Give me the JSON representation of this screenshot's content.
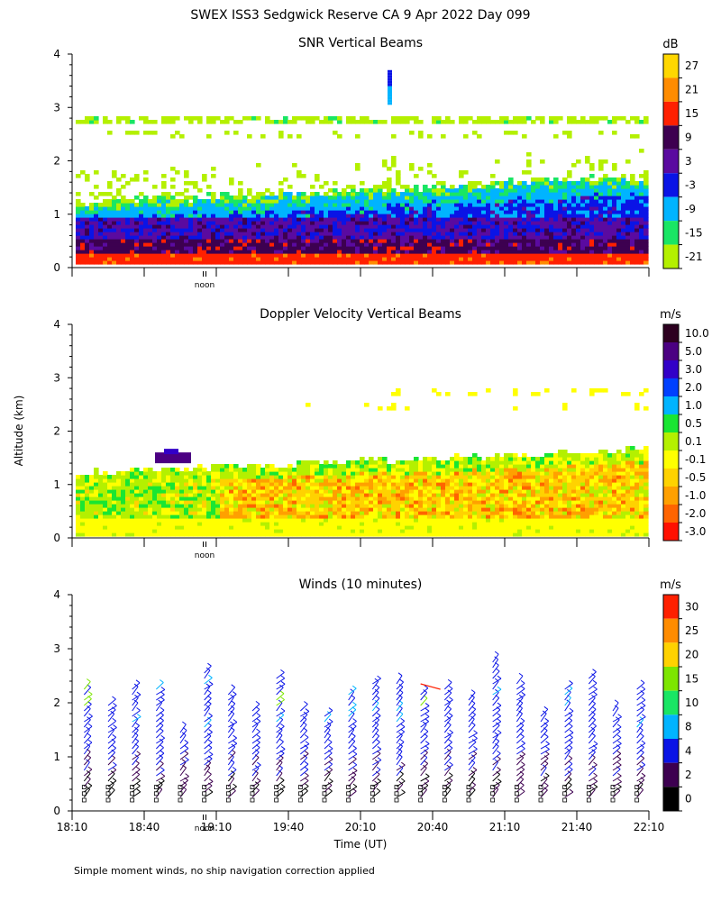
{
  "figure": {
    "title": "SWEX ISS3 Sedgwick Reserve CA   9 Apr 2022 Day 099",
    "y_axis_label": "Altitude (km)",
    "x_axis_label": "Time (UT)",
    "footnote": "Simple moment winds, no ship navigation correction applied",
    "noon_marker": "noon"
  },
  "chart_data": [
    {
      "type": "heatmap",
      "title": "SNR Vertical Beams",
      "ylabel": "Altitude (km)",
      "ylim": [
        0,
        4
      ],
      "yticks": [
        "0",
        "1",
        "2",
        "3",
        "4"
      ],
      "xlim_minutes_utc": [
        1090,
        1330
      ],
      "colorbar": {
        "unit": "dB",
        "labels": [
          "27",
          "21",
          "15",
          "9",
          "3",
          "-3",
          "-9",
          "-15",
          "-21"
        ],
        "colors": [
          "#ffd700",
          "#ff8c00",
          "#ff2000",
          "#3d0050",
          "#5a0aa0",
          "#0a14e6",
          "#00b4ff",
          "#19e664",
          "#b4f000"
        ]
      },
      "description_layers": [
        {
          "alt_km": [
            0.1,
            0.35
          ],
          "level": "15",
          "color": "#ff2000"
        },
        {
          "alt_km": [
            0.35,
            0.75
          ],
          "level": "9",
          "color": "#3d0050"
        },
        {
          "alt_km": [
            0.75,
            1.3
          ],
          "level": "-3",
          "color": "#0a14e6"
        },
        {
          "alt_km": [
            1.3,
            1.8
          ],
          "level": "-9",
          "color": "#00b4ff"
        },
        {
          "alt_km": [
            2.7,
            2.85
          ],
          "level": "-21",
          "color": "#b4f000"
        }
      ]
    },
    {
      "type": "heatmap",
      "title": "Doppler Velocity Vertical Beams",
      "ylabel": "Altitude (km)",
      "ylim": [
        0,
        4
      ],
      "yticks": [
        "0",
        "1",
        "2",
        "3",
        "4"
      ],
      "xlim_minutes_utc": [
        1090,
        1330
      ],
      "colorbar": {
        "unit": "m/s",
        "labels": [
          "10.0",
          "5.0",
          "3.0",
          "2.0",
          "1.0",
          "0.5",
          "0.1",
          "-0.1",
          "-0.5",
          "-1.0",
          "-2.0",
          "-3.0"
        ],
        "colors": [
          "#2d0020",
          "#4b0082",
          "#3200c8",
          "#0040ff",
          "#00b4ff",
          "#19e632",
          "#b4f000",
          "#ffff00",
          "#ffd200",
          "#ffa000",
          "#ff6400",
          "#ff1000"
        ]
      }
    },
    {
      "type": "scatter",
      "title": "Winds (10 minutes)",
      "ylabel": "Altitude (km)",
      "xlabel": "Time (UT)",
      "ylim": [
        0,
        4
      ],
      "yticks": [
        "0",
        "1",
        "2",
        "3",
        "4"
      ],
      "x_ticks": [
        "18:10",
        "18:40",
        "19:10",
        "19:40",
        "20:10",
        "20:40",
        "21:10",
        "21:40",
        "22:10"
      ],
      "x_tick_minutes": [
        1090,
        1120,
        1150,
        1180,
        1210,
        1240,
        1270,
        1300,
        1330
      ],
      "profile_times_minutes": [
        1095,
        1105,
        1115,
        1125,
        1135,
        1145,
        1155,
        1165,
        1175,
        1185,
        1195,
        1205,
        1215,
        1225,
        1235,
        1245,
        1255,
        1265,
        1275,
        1285,
        1295,
        1305,
        1315,
        1325
      ],
      "profile_tops_km": [
        2.3,
        2.0,
        2.3,
        2.3,
        1.5,
        2.6,
        2.2,
        1.9,
        2.5,
        1.9,
        1.8,
        2.2,
        2.4,
        2.4,
        2.2,
        2.3,
        2.1,
        2.8,
        2.4,
        1.8,
        2.3,
        2.5,
        1.9,
        2.3
      ],
      "colorbar": {
        "unit": "m/s",
        "labels": [
          "30",
          "25",
          "20",
          "15",
          "10",
          "8",
          "4",
          "2",
          "0"
        ],
        "colors": [
          "#ff2000",
          "#ff8c00",
          "#ffd200",
          "#7de600",
          "#19e664",
          "#00b4ff",
          "#0a14e6",
          "#3d0050",
          "#000000"
        ]
      }
    }
  ]
}
